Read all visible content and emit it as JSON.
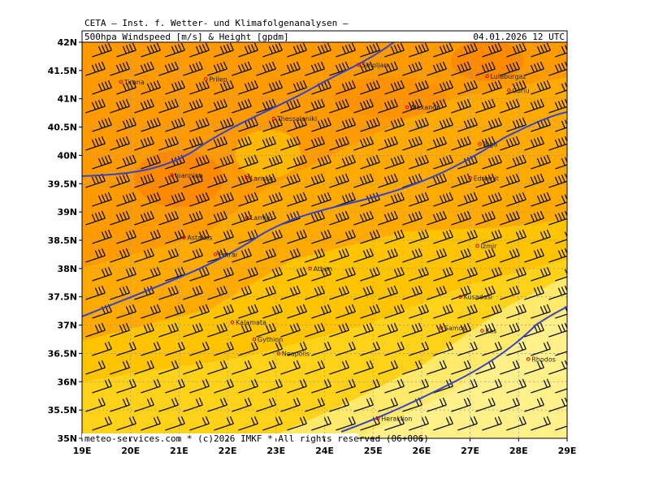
{
  "header": {
    "institute": "CETA — Inst. f. Wetter- und Klimafolgenanalysen —",
    "title": "500hpa Windspeed [m/s] & Height [gpdm]",
    "valid_time": "04.01.2026 12 UTC"
  },
  "footer": "meteo-services.com * (c)2026 IMKF * All rights reserved (06+006)",
  "map": {
    "lon_ticks": [
      {
        "value": 19,
        "label": "19E"
      },
      {
        "value": 20,
        "label": "20E"
      },
      {
        "value": 21,
        "label": "21E"
      },
      {
        "value": 22,
        "label": "22E"
      },
      {
        "value": 23,
        "label": "23E"
      },
      {
        "value": 24,
        "label": "24E"
      },
      {
        "value": 25,
        "label": "25E"
      },
      {
        "value": 26,
        "label": "26E"
      },
      {
        "value": 27,
        "label": "27E"
      },
      {
        "value": 28,
        "label": "28E"
      },
      {
        "value": 29,
        "label": "29E"
      }
    ],
    "lat_ticks": [
      {
        "value": 35,
        "label": "35N"
      },
      {
        "value": 35.5,
        "label": "35.5N"
      },
      {
        "value": 36,
        "label": "36N"
      },
      {
        "value": 36.5,
        "label": "36.5N"
      },
      {
        "value": 37,
        "label": "37N"
      },
      {
        "value": 37.5,
        "label": "37.5N"
      },
      {
        "value": 38,
        "label": "38N"
      },
      {
        "value": 38.5,
        "label": "38.5N"
      },
      {
        "value": 39,
        "label": "39N"
      },
      {
        "value": 39.5,
        "label": "39.5N"
      },
      {
        "value": 40,
        "label": "40N"
      },
      {
        "value": 40.5,
        "label": "40.5N"
      },
      {
        "value": 41,
        "label": "41N"
      },
      {
        "value": 41.5,
        "label": "41.5N"
      },
      {
        "value": 42,
        "label": "42N"
      }
    ],
    "cities": [
      "Tirana",
      "Prilep",
      "Smoljan",
      "Luleburgaz",
      "Alexandr.",
      "Corlu",
      "Thessaloniki",
      "Biga",
      "Ioannina",
      "Larissa",
      "Edremit",
      "Lamia",
      "Astakos",
      "Patrai",
      "Athen",
      "Izmir",
      "Kusadasi",
      "Kalamata",
      "Samos",
      "Gythion",
      "Kos",
      "Neapolis",
      "Rhodos",
      "Heraklion"
    ]
  }
}
